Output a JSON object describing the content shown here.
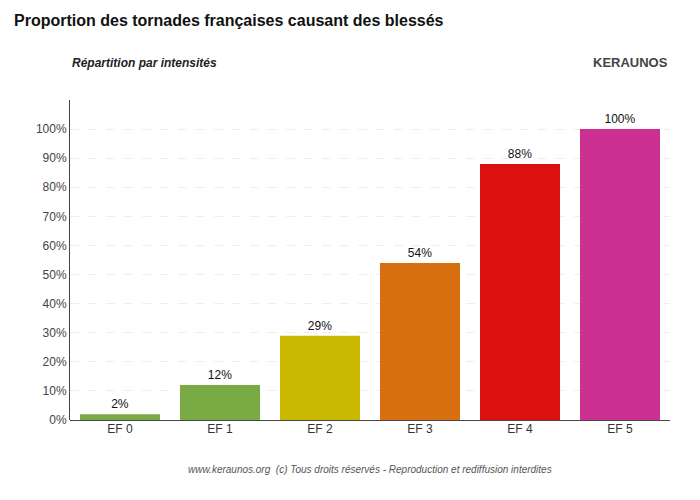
{
  "chart_data": {
    "type": "bar",
    "title": "Proportion des tornades françaises causant des blessés",
    "subtitle": "Répartition par intensités",
    "categories": [
      "EF 0",
      "EF 1",
      "EF 2",
      "EF 3",
      "EF 4",
      "EF 5"
    ],
    "values": [
      2,
      12,
      29,
      54,
      88,
      100
    ],
    "value_labels": [
      "2%",
      "12%",
      "29%",
      "54%",
      "88%",
      "100%"
    ],
    "data_labels": true,
    "colors": [
      "#7aaa44",
      "#7aaa44",
      "#c8b800",
      "#d87010",
      "#dd1010",
      "#cc3090"
    ],
    "ylim": [
      0,
      110
    ],
    "yticks": [
      {
        "value": 0,
        "label": "0%"
      },
      {
        "value": 10,
        "label": "10%"
      },
      {
        "value": 20,
        "label": "20%"
      },
      {
        "value": 30,
        "label": "30%"
      },
      {
        "value": 40,
        "label": "40%"
      },
      {
        "value": 50,
        "label": "50%"
      },
      {
        "value": 60,
        "label": "60%"
      },
      {
        "value": 70,
        "label": "70%"
      },
      {
        "value": 80,
        "label": "80%"
      },
      {
        "value": 90,
        "label": "90%"
      },
      {
        "value": 100,
        "label": "100%"
      }
    ],
    "grid": true,
    "annotations": [
      "KERAUNOS",
      "www.keraunos.org  (c) Tous droits réservés - Reproduction et rediffusion interdites"
    ]
  }
}
